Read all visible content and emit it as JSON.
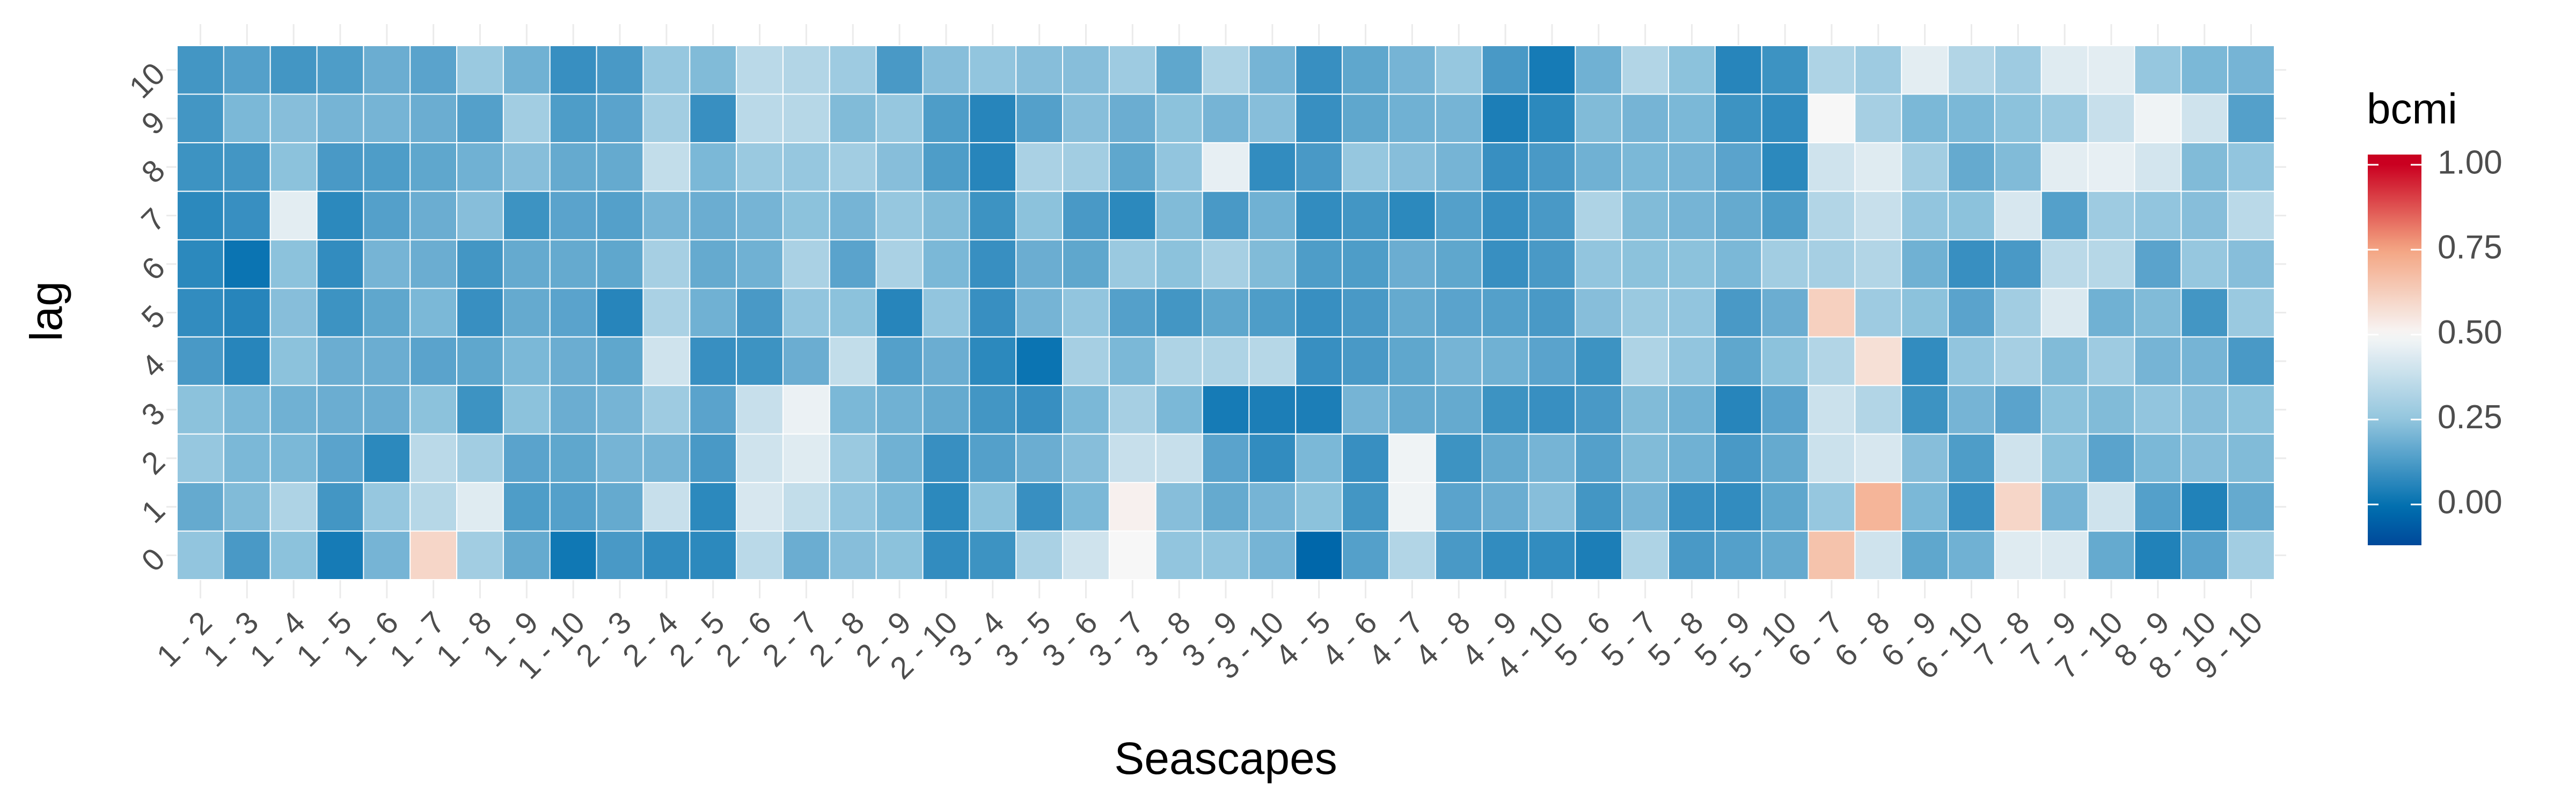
{
  "chart_data": {
    "type": "heatmap",
    "xlabel": "Seascapes",
    "ylabel": "lag",
    "x_categories": [
      "1 - 2",
      "1 - 3",
      "1 - 4",
      "1 - 5",
      "1 - 6",
      "1 - 7",
      "1 - 8",
      "1 - 9",
      "1 - 10",
      "2 - 3",
      "2 - 4",
      "2 - 5",
      "2 - 6",
      "2 - 7",
      "2 - 8",
      "2 - 9",
      "2 - 10",
      "3 - 4",
      "3 - 5",
      "3 - 6",
      "3 - 7",
      "3 - 8",
      "3 - 9",
      "3 - 10",
      "4 - 5",
      "4 - 6",
      "4 - 7",
      "4 - 8",
      "4 - 9",
      "4 - 10",
      "5 - 6",
      "5 - 7",
      "5 - 8",
      "5 - 9",
      "5 - 10",
      "6 - 7",
      "6 - 8",
      "6 - 9",
      "6 - 10",
      "7 - 8",
      "7 - 9",
      "7 - 10",
      "8 - 9",
      "8 - 10",
      "9 - 10"
    ],
    "y_categories": [
      "0",
      "1",
      "2",
      "3",
      "4",
      "5",
      "6",
      "7",
      "8",
      "9",
      "10"
    ],
    "legend": {
      "title": "bcmi",
      "breaks": [
        0.0,
        0.25,
        0.5,
        0.75,
        1.0
      ],
      "labels": [
        "0.00",
        "0.25",
        "0.50",
        "0.75",
        "1.00"
      ],
      "limits": [
        -0.12,
        1.03
      ],
      "colors": [
        "#0571b0",
        "#92c5de",
        "#f7f7f7",
        "#f4a582",
        "#ca0020"
      ],
      "placement": "right"
    },
    "grid": true,
    "values": [
      [
        0.25,
        0.12,
        0.24,
        0.03,
        0.2,
        0.6,
        0.29,
        0.17,
        0.02,
        0.12,
        0.08,
        0.07,
        0.35,
        0.18,
        0.23,
        0.24,
        0.08,
        0.1,
        0.31,
        0.4,
        0.5,
        0.25,
        0.25,
        0.2,
        -0.03,
        0.14,
        0.33,
        0.12,
        0.08,
        0.08,
        0.04,
        0.32,
        0.12,
        0.14,
        0.17,
        0.66,
        0.4,
        0.16,
        0.19,
        0.44,
        0.43,
        0.17,
        0.05,
        0.15,
        0.29
      ],
      [
        0.17,
        0.22,
        0.32,
        0.11,
        0.26,
        0.34,
        0.44,
        0.13,
        0.14,
        0.17,
        0.38,
        0.07,
        0.42,
        0.37,
        0.25,
        0.21,
        0.07,
        0.24,
        0.09,
        0.21,
        0.52,
        0.23,
        0.17,
        0.2,
        0.24,
        0.11,
        0.48,
        0.15,
        0.18,
        0.23,
        0.11,
        0.2,
        0.09,
        0.08,
        0.16,
        0.26,
        0.7,
        0.21,
        0.09,
        0.6,
        0.2,
        0.4,
        0.14,
        0.05,
        0.17
      ],
      [
        0.26,
        0.21,
        0.21,
        0.15,
        0.07,
        0.35,
        0.29,
        0.15,
        0.16,
        0.2,
        0.2,
        0.12,
        0.4,
        0.44,
        0.27,
        0.19,
        0.09,
        0.14,
        0.18,
        0.23,
        0.38,
        0.38,
        0.15,
        0.08,
        0.21,
        0.09,
        0.48,
        0.1,
        0.17,
        0.2,
        0.14,
        0.22,
        0.19,
        0.12,
        0.17,
        0.39,
        0.42,
        0.23,
        0.13,
        0.4,
        0.24,
        0.15,
        0.21,
        0.23,
        0.22
      ],
      [
        0.24,
        0.21,
        0.19,
        0.18,
        0.18,
        0.24,
        0.1,
        0.24,
        0.18,
        0.2,
        0.28,
        0.15,
        0.38,
        0.47,
        0.21,
        0.19,
        0.17,
        0.11,
        0.09,
        0.21,
        0.3,
        0.21,
        0.03,
        0.04,
        0.04,
        0.2,
        0.17,
        0.17,
        0.1,
        0.09,
        0.12,
        0.22,
        0.19,
        0.06,
        0.15,
        0.39,
        0.33,
        0.1,
        0.2,
        0.15,
        0.24,
        0.22,
        0.25,
        0.23,
        0.24
      ],
      [
        0.12,
        0.06,
        0.24,
        0.18,
        0.18,
        0.15,
        0.16,
        0.21,
        0.18,
        0.16,
        0.4,
        0.09,
        0.1,
        0.18,
        0.37,
        0.14,
        0.18,
        0.07,
        0.01,
        0.3,
        0.21,
        0.32,
        0.32,
        0.34,
        0.09,
        0.12,
        0.16,
        0.2,
        0.19,
        0.15,
        0.1,
        0.32,
        0.25,
        0.16,
        0.24,
        0.33,
        0.57,
        0.08,
        0.25,
        0.3,
        0.22,
        0.28,
        0.2,
        0.2,
        0.12
      ],
      [
        0.08,
        0.06,
        0.23,
        0.1,
        0.16,
        0.21,
        0.09,
        0.17,
        0.15,
        0.06,
        0.31,
        0.19,
        0.12,
        0.25,
        0.24,
        0.06,
        0.25,
        0.09,
        0.2,
        0.25,
        0.14,
        0.11,
        0.16,
        0.13,
        0.09,
        0.12,
        0.17,
        0.15,
        0.14,
        0.12,
        0.23,
        0.27,
        0.25,
        0.12,
        0.18,
        0.62,
        0.28,
        0.24,
        0.15,
        0.29,
        0.43,
        0.19,
        0.22,
        0.11,
        0.27
      ],
      [
        0.07,
        0.01,
        0.24,
        0.08,
        0.2,
        0.18,
        0.11,
        0.17,
        0.17,
        0.16,
        0.3,
        0.17,
        0.19,
        0.31,
        0.15,
        0.31,
        0.21,
        0.09,
        0.18,
        0.16,
        0.27,
        0.24,
        0.3,
        0.22,
        0.13,
        0.13,
        0.18,
        0.16,
        0.09,
        0.12,
        0.25,
        0.24,
        0.24,
        0.21,
        0.29,
        0.3,
        0.33,
        0.19,
        0.09,
        0.12,
        0.35,
        0.34,
        0.15,
        0.26,
        0.23
      ],
      [
        0.07,
        0.09,
        0.45,
        0.07,
        0.14,
        0.18,
        0.23,
        0.1,
        0.15,
        0.14,
        0.2,
        0.18,
        0.2,
        0.24,
        0.2,
        0.26,
        0.22,
        0.1,
        0.24,
        0.12,
        0.07,
        0.22,
        0.12,
        0.19,
        0.08,
        0.11,
        0.07,
        0.14,
        0.09,
        0.12,
        0.32,
        0.22,
        0.2,
        0.17,
        0.13,
        0.33,
        0.38,
        0.25,
        0.24,
        0.42,
        0.14,
        0.28,
        0.25,
        0.23,
        0.35
      ],
      [
        0.1,
        0.11,
        0.24,
        0.12,
        0.13,
        0.16,
        0.19,
        0.23,
        0.17,
        0.17,
        0.37,
        0.21,
        0.27,
        0.26,
        0.29,
        0.23,
        0.13,
        0.06,
        0.31,
        0.29,
        0.16,
        0.25,
        0.46,
        0.08,
        0.12,
        0.26,
        0.23,
        0.2,
        0.09,
        0.12,
        0.19,
        0.21,
        0.2,
        0.15,
        0.07,
        0.4,
        0.44,
        0.29,
        0.17,
        0.22,
        0.45,
        0.46,
        0.41,
        0.22,
        0.25
      ],
      [
        0.11,
        0.21,
        0.23,
        0.2,
        0.2,
        0.18,
        0.14,
        0.29,
        0.13,
        0.15,
        0.29,
        0.09,
        0.35,
        0.34,
        0.22,
        0.26,
        0.13,
        0.06,
        0.14,
        0.23,
        0.18,
        0.24,
        0.2,
        0.23,
        0.09,
        0.16,
        0.19,
        0.2,
        0.04,
        0.07,
        0.22,
        0.2,
        0.21,
        0.1,
        0.08,
        0.5,
        0.3,
        0.21,
        0.21,
        0.24,
        0.27,
        0.38,
        0.48,
        0.4,
        0.14
      ],
      [
        0.11,
        0.14,
        0.11,
        0.13,
        0.18,
        0.15,
        0.27,
        0.19,
        0.09,
        0.12,
        0.26,
        0.22,
        0.35,
        0.33,
        0.28,
        0.12,
        0.23,
        0.25,
        0.23,
        0.23,
        0.28,
        0.16,
        0.32,
        0.2,
        0.09,
        0.16,
        0.2,
        0.26,
        0.12,
        0.03,
        0.19,
        0.33,
        0.24,
        0.06,
        0.1,
        0.32,
        0.28,
        0.45,
        0.33,
        0.28,
        0.44,
        0.45,
        0.26,
        0.21,
        0.2
      ]
    ]
  }
}
